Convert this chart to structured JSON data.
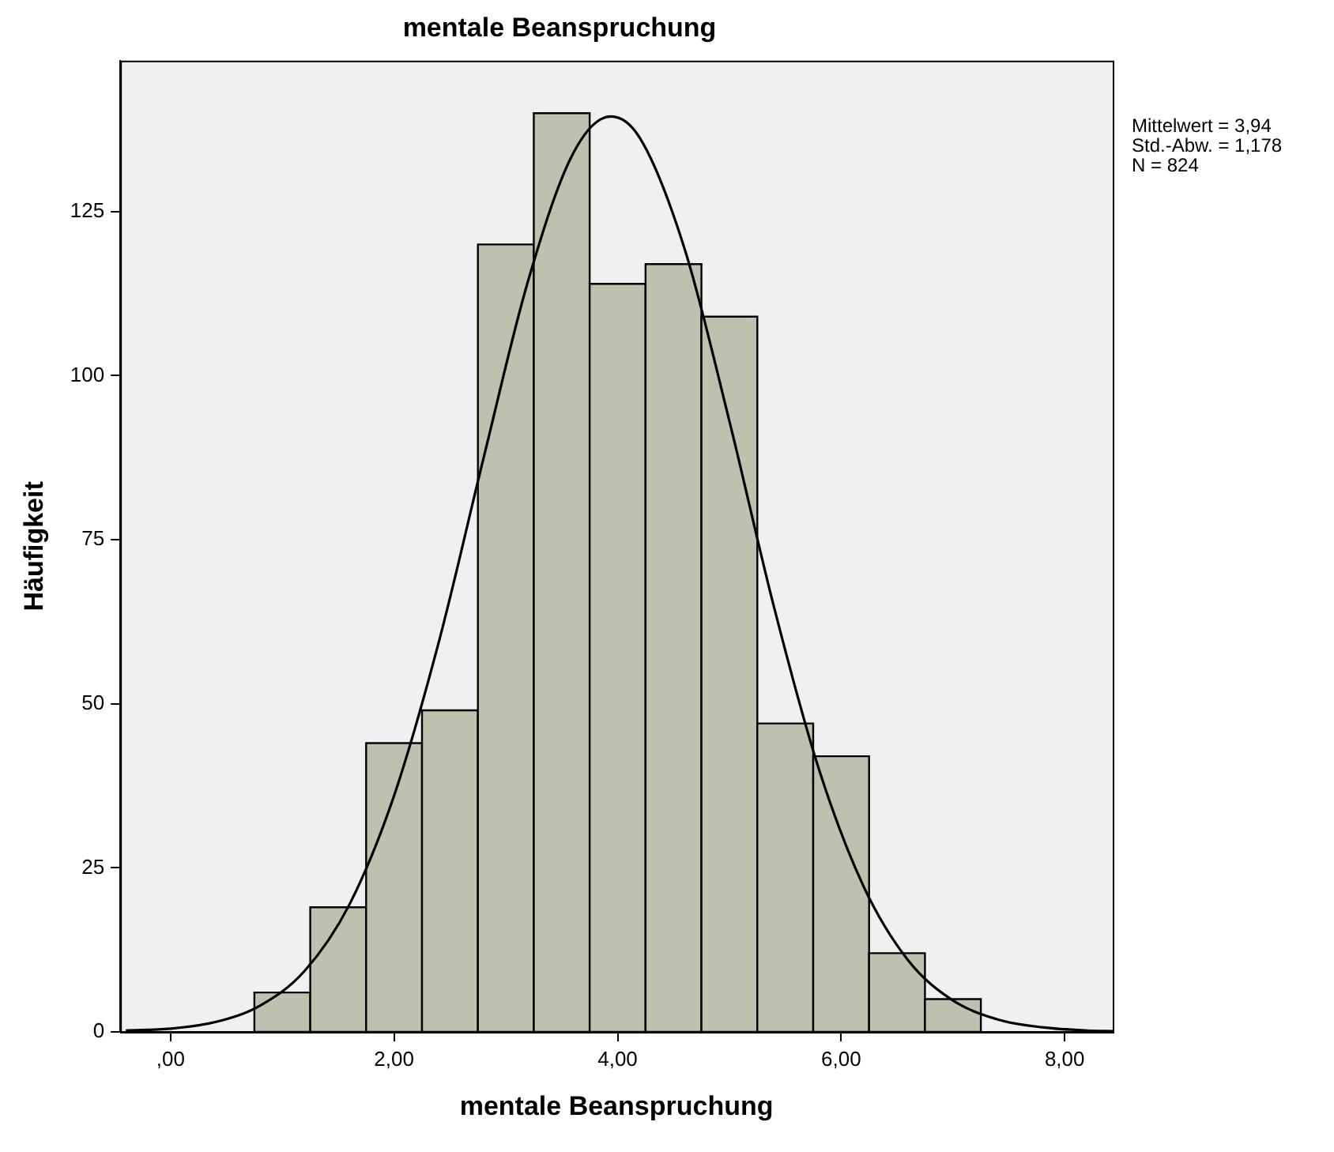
{
  "chart_data": {
    "type": "histogram",
    "title": "mentale Beanspruchung",
    "xlabel": "mentale Beanspruchung",
    "ylabel": "Häufigkeit",
    "bins": [
      0.75,
      1.25,
      1.75,
      2.25,
      2.75,
      3.25,
      3.75,
      4.25,
      4.75,
      5.25,
      5.75,
      6.25,
      6.75,
      7.25
    ],
    "values": [
      6,
      19,
      44,
      49,
      120,
      140,
      114,
      117,
      109,
      47,
      42,
      12,
      5
    ],
    "color": "#c0c0ae",
    "series": [
      {
        "type": "line",
        "color": "#000000",
        "x": [
          -0.4,
          0,
          0.4,
          0.8,
          1.2,
          1.6,
          2.0,
          2.4,
          2.8,
          3.2,
          3.6,
          3.94,
          4.2,
          4.6,
          5.0,
          5.4,
          5.8,
          6.2,
          6.6,
          7.0,
          7.4,
          7.8,
          8.2,
          8.43
        ],
        "values": [
          0.2,
          0.5,
          1.5,
          4.0,
          9.3,
          19.4,
          36.0,
          59.4,
          87.4,
          114.5,
          133.8,
          139.5,
          136.2,
          119.3,
          93.1,
          64.7,
          40.1,
          22.2,
          10.9,
          4.8,
          1.9,
          0.7,
          0.2,
          0.1
        ]
      }
    ],
    "xlim": [
      -0.45,
      8.43
    ],
    "ylim": [
      0,
      148
    ],
    "xticks": [
      {
        "value": 0,
        "label": ",00"
      },
      {
        "value": 2,
        "label": "2,00"
      },
      {
        "value": 4,
        "label": "4,00"
      },
      {
        "value": 6,
        "label": "6,00"
      },
      {
        "value": 8,
        "label": "8,00"
      }
    ],
    "yticks": [
      0,
      25,
      50,
      75,
      100,
      125
    ],
    "annotations": [
      "Mittelwert = 3,94",
      "Std.-Abw. = 1,178",
      "N = 824"
    ],
    "grid": false,
    "legend": false
  }
}
